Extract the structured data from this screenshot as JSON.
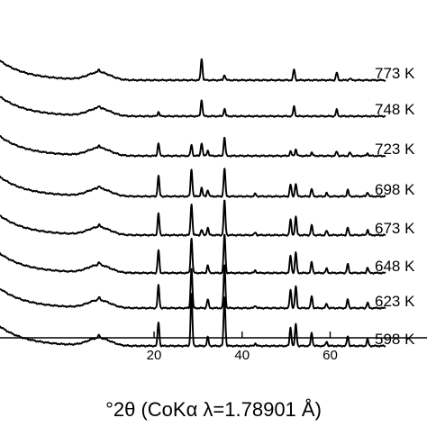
{
  "chart_data": {
    "type": "line",
    "title": "",
    "xlabel": "°2θ (CoKα λ=1.78901 Å)",
    "ylabel": "",
    "xlim": [
      -15,
      82
    ],
    "x_ticks": [
      20,
      40,
      60
    ],
    "x_tick_labels": [
      "20",
      "40",
      "60"
    ],
    "grid": false,
    "legend": "none",
    "series": [
      {
        "name": "773 K",
        "label_text": "773 K",
        "peaks": [
          [
            7.5,
            0.12
          ],
          [
            30.8,
            1.0
          ],
          [
            36.0,
            0.25
          ],
          [
            51.8,
            0.5
          ],
          [
            61.5,
            0.35
          ],
          [
            64.5,
            0.08
          ]
        ]
      },
      {
        "name": "748 K",
        "label_text": "748 K",
        "peaks": [
          [
            7.5,
            0.12
          ],
          [
            21.0,
            0.2
          ],
          [
            30.8,
            0.75
          ],
          [
            36.0,
            0.35
          ],
          [
            51.8,
            0.45
          ],
          [
            61.5,
            0.3
          ]
        ]
      },
      {
        "name": "723 K",
        "label_text": "723 K",
        "peaks": [
          [
            7.5,
            0.12
          ],
          [
            21.0,
            0.6
          ],
          [
            28.5,
            0.5
          ],
          [
            30.8,
            0.6
          ],
          [
            32.2,
            0.25
          ],
          [
            36.0,
            0.85
          ],
          [
            51.0,
            0.2
          ],
          [
            52.2,
            0.3
          ],
          [
            55.8,
            0.15
          ],
          [
            61.5,
            0.2
          ],
          [
            64.5,
            0.15
          ],
          [
            68.5,
            0.12
          ]
        ]
      },
      {
        "name": "698 K",
        "label_text": "698 K",
        "peaks": [
          [
            7.5,
            0.12
          ],
          [
            21.0,
            0.95
          ],
          [
            28.5,
            1.25
          ],
          [
            30.8,
            0.4
          ],
          [
            32.2,
            0.3
          ],
          [
            36.0,
            1.3
          ],
          [
            43.0,
            0.12
          ],
          [
            51.0,
            0.55
          ],
          [
            52.2,
            0.6
          ],
          [
            55.8,
            0.35
          ],
          [
            59.2,
            0.15
          ],
          [
            64.0,
            0.3
          ],
          [
            68.5,
            0.2
          ]
        ]
      },
      {
        "name": "673 K",
        "label_text": "673 K",
        "peaks": [
          [
            7.5,
            0.12
          ],
          [
            21.0,
            1.0
          ],
          [
            28.5,
            1.45
          ],
          [
            30.8,
            0.25
          ],
          [
            32.2,
            0.35
          ],
          [
            36.0,
            1.6
          ],
          [
            43.0,
            0.12
          ],
          [
            51.0,
            0.7
          ],
          [
            52.2,
            0.85
          ],
          [
            55.8,
            0.45
          ],
          [
            59.2,
            0.2
          ],
          [
            64.0,
            0.35
          ],
          [
            68.5,
            0.25
          ]
        ]
      },
      {
        "name": "648 K",
        "label_text": "648 K",
        "peaks": [
          [
            7.5,
            0.12
          ],
          [
            21.0,
            1.05
          ],
          [
            28.5,
            1.6
          ],
          [
            32.2,
            0.35
          ],
          [
            36.0,
            1.8
          ],
          [
            43.0,
            0.12
          ],
          [
            51.0,
            0.8
          ],
          [
            52.2,
            0.95
          ],
          [
            55.8,
            0.5
          ],
          [
            59.2,
            0.2
          ],
          [
            64.0,
            0.4
          ],
          [
            68.5,
            0.25
          ]
        ]
      },
      {
        "name": "623 K",
        "label_text": "623 K",
        "peaks": [
          [
            7.5,
            0.12
          ],
          [
            21.0,
            1.05
          ],
          [
            28.5,
            1.85
          ],
          [
            32.2,
            0.4
          ],
          [
            36.0,
            2.0
          ],
          [
            43.0,
            0.12
          ],
          [
            51.0,
            0.85
          ],
          [
            52.2,
            1.0
          ],
          [
            55.8,
            0.55
          ],
          [
            59.2,
            0.2
          ],
          [
            64.0,
            0.4
          ],
          [
            68.5,
            0.25
          ]
        ]
      },
      {
        "name": "598 K",
        "label_text": "598 K",
        "peaks": [
          [
            7.5,
            0.12
          ],
          [
            21.0,
            1.1
          ],
          [
            28.5,
            2.4
          ],
          [
            32.2,
            0.4
          ],
          [
            36.0,
            2.3
          ],
          [
            43.0,
            0.12
          ],
          [
            51.0,
            0.85
          ],
          [
            52.2,
            1.0
          ],
          [
            55.8,
            0.6
          ],
          [
            59.2,
            0.2
          ],
          [
            64.0,
            0.45
          ],
          [
            68.5,
            0.3
          ]
        ]
      }
    ]
  }
}
